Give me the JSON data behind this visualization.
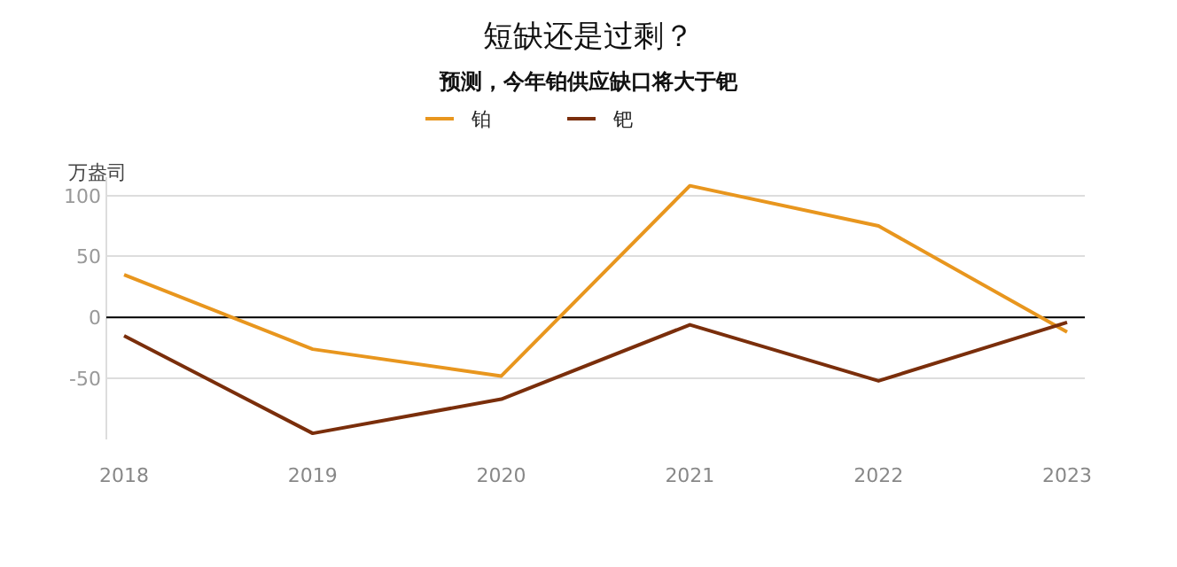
{
  "chart_data": {
    "type": "line",
    "title": "短缺还是过剩？",
    "subtitle": "预测，今年铂供应缺口将大于钯",
    "ylabel": "万盎司",
    "categories": [
      "2018",
      "2019",
      "2020",
      "2021",
      "2022",
      "2023"
    ],
    "series": [
      {
        "name": "铂",
        "color": "#e8961e",
        "values": [
          35,
          -26,
          -48,
          108,
          75,
          -12
        ]
      },
      {
        "name": "钯",
        "color": "#7a2e0b",
        "values": [
          -15,
          -95,
          -67,
          -6,
          -52,
          -4
        ]
      }
    ],
    "ylim": [
      -100,
      115
    ],
    "yticks": [
      -50,
      0,
      50,
      100
    ],
    "grid": "y",
    "legend": "top",
    "marker": "none",
    "line_style": "solid",
    "ref_lines": [
      {
        "axis": "y",
        "value": 0,
        "color": "#000000"
      }
    ]
  }
}
